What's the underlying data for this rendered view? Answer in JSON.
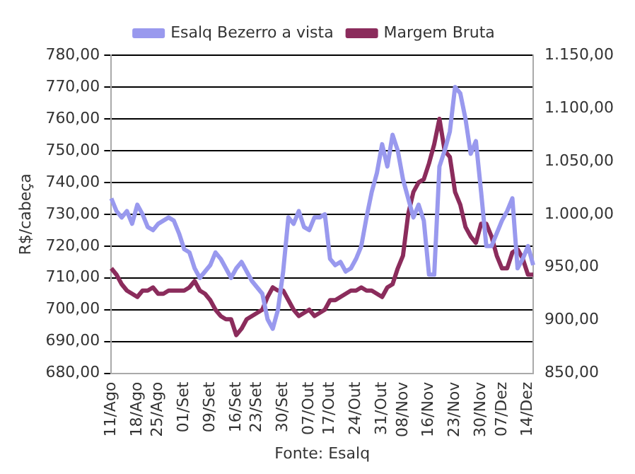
{
  "chart_data": {
    "type": "line",
    "categories": [
      "11/Ago",
      null,
      null,
      null,
      null,
      "18/Ago",
      null,
      null,
      null,
      "25/Ago",
      null,
      null,
      null,
      null,
      "01/Set",
      null,
      null,
      null,
      null,
      "09/Set",
      null,
      null,
      null,
      null,
      "16/Set",
      null,
      null,
      null,
      "23/Set",
      null,
      null,
      null,
      null,
      "30/Set",
      null,
      null,
      null,
      null,
      "07/Out",
      null,
      null,
      null,
      "17/Out",
      null,
      null,
      null,
      null,
      "24/Out",
      null,
      null,
      null,
      null,
      "31/Out",
      null,
      null,
      null,
      "08/Nov",
      null,
      null,
      null,
      null,
      "16/Nov",
      null,
      null,
      null,
      null,
      "23/Nov",
      null,
      null,
      null,
      null,
      "30/Nov",
      null,
      null,
      null,
      "07/Dez",
      null,
      null,
      null,
      null,
      "14/Dez",
      null
    ],
    "series": [
      {
        "name": "Esalq Bezerro a vista",
        "color": "#9999ee",
        "values": [
          735,
          731,
          729,
          731,
          727,
          733,
          730,
          726,
          725,
          727,
          728,
          729,
          728,
          724,
          719,
          718,
          713,
          710,
          712,
          714,
          718,
          716,
          713,
          710,
          713,
          715,
          712,
          709,
          707,
          705,
          697,
          694,
          700,
          712,
          729,
          727,
          731,
          726,
          725,
          729,
          729,
          730,
          716,
          714,
          715,
          712,
          713,
          716,
          720,
          729,
          737,
          743,
          752,
          745,
          755,
          750,
          741,
          735,
          729,
          733,
          728,
          711,
          711,
          745,
          750,
          756,
          770,
          768,
          760,
          749,
          753,
          737,
          720,
          720,
          724,
          728,
          731,
          735,
          713,
          716,
          720,
          714
        ]
      },
      {
        "name": "Margem Bruta",
        "color": "#8b2c5c",
        "axis": "y2",
        "values": [
          949,
          943,
          934,
          928,
          925,
          922,
          928,
          928,
          931,
          925,
          925,
          928,
          928,
          928,
          928,
          931,
          937,
          928,
          925,
          919,
          910,
          904,
          901,
          901,
          886,
          892,
          901,
          904,
          907,
          910,
          922,
          931,
          928,
          928,
          919,
          910,
          904,
          907,
          910,
          904,
          907,
          910,
          919,
          919,
          922,
          925,
          928,
          928,
          931,
          928,
          928,
          925,
          922,
          931,
          934,
          949,
          961,
          1000,
          1021,
          1030,
          1033,
          1048,
          1066,
          1090,
          1060,
          1054,
          1021,
          1009,
          988,
          979,
          973,
          991,
          991,
          979,
          961,
          949,
          949,
          964,
          967,
          958,
          943,
          943
        ]
      }
    ],
    "ylabel": "R$/cabeça",
    "ylim": [
      680,
      780
    ],
    "yticks": [
      {
        "value": 680,
        "label": "680,00"
      },
      {
        "value": 690,
        "label": "690,00"
      },
      {
        "value": 700,
        "label": "700,00"
      },
      {
        "value": 710,
        "label": "710,00"
      },
      {
        "value": 720,
        "label": "720,00"
      },
      {
        "value": 730,
        "label": "730,00"
      },
      {
        "value": 740,
        "label": "740,00"
      },
      {
        "value": 750,
        "label": "750,00"
      },
      {
        "value": 760,
        "label": "760,00"
      },
      {
        "value": 770,
        "label": "770,00"
      },
      {
        "value": 780,
        "label": "780,00"
      }
    ],
    "y2lim": [
      850,
      1150
    ],
    "y2ticks": [
      {
        "value": 850,
        "label": "850,00"
      },
      {
        "value": 900,
        "label": "900,00"
      },
      {
        "value": 950,
        "label": "950,00"
      },
      {
        "value": 1000,
        "label": "1.000,00"
      },
      {
        "value": 1050,
        "label": "1.050,00"
      },
      {
        "value": 1100,
        "label": "1.100,00"
      },
      {
        "value": 1150,
        "label": "1.150,00"
      }
    ],
    "grid": "y",
    "legend": "top",
    "marker": "none",
    "line_style": "solid",
    "annotations": [
      "Fonte: Esalq"
    ]
  }
}
